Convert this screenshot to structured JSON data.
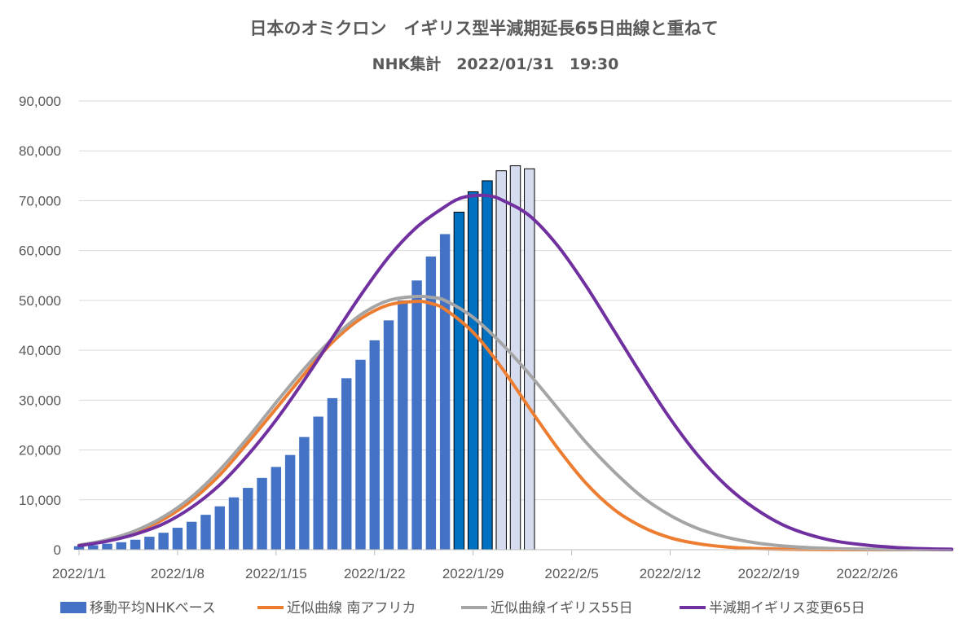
{
  "chart_data": {
    "type": "bar+line",
    "title": "日本のオミクロン　イギリス型半減期延長65日曲線と重ねて",
    "subtitle": "NHK集計　2022/01/31　19:30",
    "ylim": [
      0,
      90000
    ],
    "yticks": [
      "0",
      "10,000",
      "20,000",
      "30,000",
      "40,000",
      "50,000",
      "60,000",
      "70,000",
      "80,000",
      "90,000"
    ],
    "xlim": [
      0,
      62
    ],
    "xticks": [
      {
        "day": 0,
        "label": "2022/1/1"
      },
      {
        "day": 7,
        "label": "2022/1/8"
      },
      {
        "day": 14,
        "label": "2022/1/15"
      },
      {
        "day": 21,
        "label": "2022/1/22"
      },
      {
        "day": 28,
        "label": "2022/1/29"
      },
      {
        "day": 35,
        "label": "2022/2/5"
      },
      {
        "day": 42,
        "label": "2022/2/12"
      },
      {
        "day": 49,
        "label": "2022/2/19"
      },
      {
        "day": 56,
        "label": "2022/2/26"
      }
    ],
    "bars": {
      "name": "移動平均NHKベース",
      "start_day": 0,
      "values": [
        700,
        900,
        1200,
        1500,
        2000,
        2600,
        3400,
        4400,
        5600,
        7000,
        8700,
        10500,
        12400,
        14400,
        16600,
        19000,
        22600,
        26700,
        30400,
        34400,
        38100,
        42000,
        46000,
        50000,
        54000,
        58800,
        63300,
        67700,
        71800,
        74000,
        76000,
        77000,
        76400
      ],
      "styles": [
        "main",
        "main",
        "main",
        "main",
        "main",
        "main",
        "main",
        "main",
        "main",
        "main",
        "main",
        "main",
        "main",
        "main",
        "main",
        "main",
        "main",
        "main",
        "main",
        "main",
        "main",
        "main",
        "main",
        "main",
        "main",
        "main",
        "main",
        "dark",
        "dark",
        "dark",
        "light",
        "light",
        "light"
      ]
    },
    "series": [
      {
        "name": "近似曲線 南アフリカ",
        "color": "#ED7D31",
        "x": [
          0,
          2,
          4,
          6,
          8,
          10,
          12,
          14,
          16,
          18,
          20,
          22,
          24,
          25,
          26,
          28,
          30,
          32,
          34,
          36,
          38,
          40,
          42,
          44,
          46,
          48,
          50,
          52,
          55,
          58,
          62
        ],
        "y": [
          900,
          1900,
          3600,
          6100,
          9900,
          15000,
          21500,
          28300,
          35200,
          41600,
          46300,
          49100,
          49800,
          49400,
          48200,
          43600,
          36600,
          28400,
          20400,
          13400,
          8100,
          4600,
          2400,
          1200,
          550,
          250,
          100,
          50,
          0,
          0,
          0
        ]
      },
      {
        "name": "近似曲線イギリス55日",
        "color": "#A5A5A5",
        "x": [
          0,
          2,
          4,
          6,
          8,
          10,
          12,
          14,
          16,
          18,
          20,
          22,
          24,
          25,
          26,
          28,
          30,
          32,
          34,
          36,
          38,
          40,
          42,
          44,
          46,
          48,
          50,
          52,
          54,
          56,
          58,
          62
        ],
        "y": [
          900,
          2000,
          3800,
          6600,
          10600,
          16000,
          22500,
          29500,
          36300,
          42300,
          47100,
          50000,
          50800,
          50600,
          50000,
          46600,
          41400,
          35200,
          28400,
          21600,
          15700,
          10600,
          6900,
          4200,
          2500,
          1400,
          750,
          400,
          200,
          100,
          50,
          0
        ]
      },
      {
        "name": "半減期イギリス変更65日",
        "color": "#7030A0",
        "x": [
          0,
          2,
          4,
          6,
          8,
          10,
          12,
          14,
          16,
          18,
          20,
          22,
          24,
          26,
          27,
          28,
          29,
          30,
          32,
          34,
          36,
          38,
          40,
          42,
          44,
          46,
          48,
          50,
          52,
          54,
          56,
          58,
          60,
          62
        ],
        "y": [
          800,
          1700,
          3100,
          5200,
          8500,
          13000,
          19000,
          26000,
          34000,
          42500,
          51000,
          58700,
          64700,
          68800,
          70400,
          71000,
          71000,
          70200,
          67000,
          61000,
          53000,
          44000,
          34900,
          26300,
          18800,
          12800,
          8300,
          5000,
          2900,
          1600,
          900,
          450,
          200,
          100
        ]
      }
    ],
    "legend_position": "bottom"
  }
}
